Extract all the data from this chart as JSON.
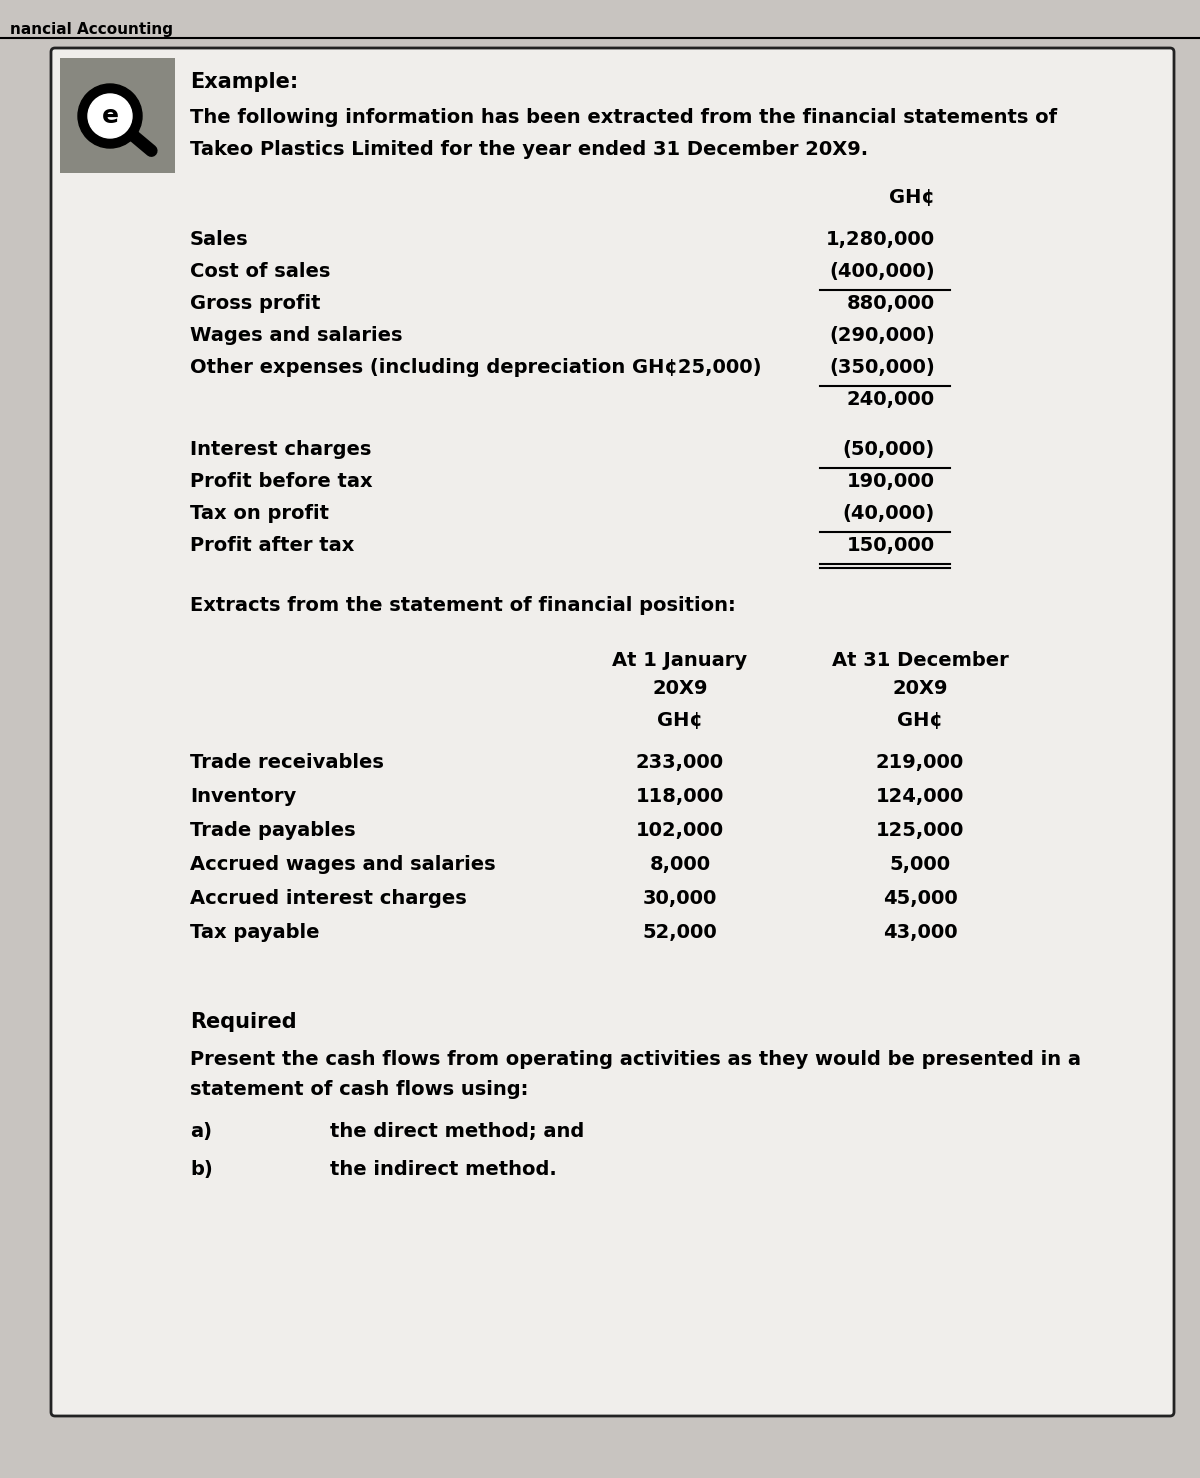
{
  "page_bg": "#c8c4c0",
  "box_bg": "#f0eeeb",
  "header_text": "nancial Accounting",
  "example_label": "Example:",
  "intro_text1": "The following information has been extracted from the financial statements of",
  "intro_text2": "Takeo Plastics Limited for the year ended 31 December 20X9.",
  "currency_header": "GH¢",
  "income_items": [
    {
      "label": "Sales",
      "value": "1,280,000",
      "underline_after": false,
      "gap_before": false
    },
    {
      "label": "Cost of sales",
      "value": "(400,000)",
      "underline_after": true,
      "gap_before": false
    },
    {
      "label": "Gross profit",
      "value": "880,000",
      "underline_after": false,
      "gap_before": false
    },
    {
      "label": "Wages and salaries",
      "value": "(290,000)",
      "underline_after": false,
      "gap_before": false
    },
    {
      "label": "Other expenses (including depreciation GH¢25,000)",
      "value": "(350,000)",
      "underline_after": true,
      "gap_before": false
    },
    {
      "label": "",
      "value": "240,000",
      "underline_after": false,
      "gap_before": false
    },
    {
      "label": "Interest charges",
      "value": "(50,000)",
      "underline_after": true,
      "gap_before": true
    },
    {
      "label": "Profit before tax",
      "value": "190,000",
      "underline_after": false,
      "gap_before": false
    },
    {
      "label": "Tax on profit",
      "value": "(40,000)",
      "underline_after": true,
      "gap_before": false
    },
    {
      "label": "Profit after tax",
      "value": "150,000",
      "underline_after": true,
      "gap_before": false
    }
  ],
  "extracts_label": "Extracts from the statement of financial position:",
  "col1_header1": "At 1 January",
  "col1_header2": "20X9",
  "col1_header3": "GH¢",
  "col2_header1": "At 31 December",
  "col2_header2": "20X9",
  "col2_header3": "GH¢",
  "position_items": [
    {
      "label": "Trade receivables",
      "val1": "233,000",
      "val2": "219,000"
    },
    {
      "label": "Inventory",
      "val1": "118,000",
      "val2": "124,000"
    },
    {
      "label": "Trade payables",
      "val1": "102,000",
      "val2": "125,000"
    },
    {
      "label": "Accrued wages and salaries",
      "val1": "8,000",
      "val2": "5,000"
    },
    {
      "label": "Accrued interest charges",
      "val1": "30,000",
      "val2": "45,000"
    },
    {
      "label": "Tax payable",
      "val1": "52,000",
      "val2": "43,000"
    }
  ],
  "required_label": "Required",
  "required_text1": "Present the cash flows from operating activities as they would be presented in a",
  "required_text2": "statement of cash flows using:",
  "point_a": "the direct method; and",
  "point_b": "the indirect method."
}
